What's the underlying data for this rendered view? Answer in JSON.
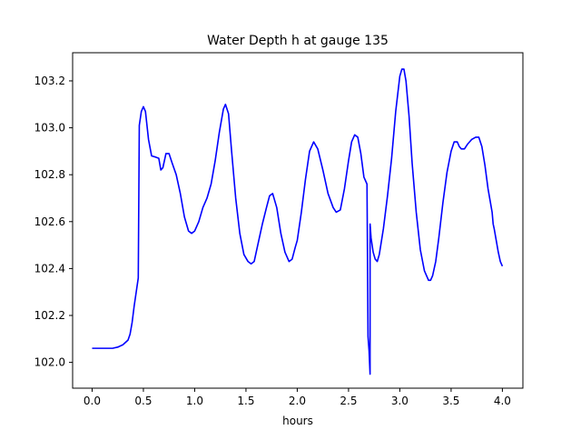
{
  "chart_data": {
    "type": "line",
    "title": "Water Depth h at gauge 135",
    "xlabel": "hours",
    "ylabel": "",
    "xlim": [
      -0.19,
      4.2
    ],
    "ylim": [
      101.89,
      103.32
    ],
    "xticks": [
      0.0,
      0.5,
      1.0,
      1.5,
      2.0,
      2.5,
      3.0,
      3.5,
      4.0
    ],
    "xtick_labels": [
      "0.0",
      "0.5",
      "1.0",
      "1.5",
      "2.0",
      "2.5",
      "3.0",
      "3.5",
      "4.0"
    ],
    "yticks": [
      102.0,
      102.2,
      102.4,
      102.6,
      102.8,
      103.0,
      103.2
    ],
    "ytick_labels": [
      "102.0",
      "102.2",
      "102.4",
      "102.6",
      "102.8",
      "103.0",
      "103.2"
    ],
    "grid": false,
    "series": [
      {
        "color": "#0000ff",
        "x": [
          0.0,
          0.1,
          0.2,
          0.25,
          0.3,
          0.35,
          0.37,
          0.39,
          0.41,
          0.43,
          0.45,
          0.46,
          0.46,
          0.48,
          0.5,
          0.52,
          0.55,
          0.58,
          0.62,
          0.65,
          0.67,
          0.69,
          0.72,
          0.75,
          0.78,
          0.82,
          0.86,
          0.9,
          0.94,
          0.97,
          1.0,
          1.04,
          1.08,
          1.12,
          1.16,
          1.2,
          1.24,
          1.28,
          1.3,
          1.33,
          1.36,
          1.4,
          1.44,
          1.48,
          1.52,
          1.55,
          1.58,
          1.6,
          1.63,
          1.66,
          1.7,
          1.73,
          1.76,
          1.8,
          1.84,
          1.88,
          1.92,
          1.95,
          1.98,
          2.0,
          2.04,
          2.08,
          2.12,
          2.16,
          2.2,
          2.25,
          2.3,
          2.35,
          2.38,
          2.42,
          2.46,
          2.5,
          2.53,
          2.56,
          2.59,
          2.62,
          2.65,
          2.68,
          2.69,
          2.69,
          2.7,
          2.71,
          2.71,
          2.72,
          2.74,
          2.76,
          2.78,
          2.8,
          2.84,
          2.88,
          2.92,
          2.96,
          3.0,
          3.02,
          3.04,
          3.06,
          3.09,
          3.12,
          3.16,
          3.2,
          3.24,
          3.28,
          3.3,
          3.32,
          3.35,
          3.38,
          3.42,
          3.46,
          3.5,
          3.53,
          3.56,
          3.58,
          3.6,
          3.63,
          3.66,
          3.7,
          3.74,
          3.77,
          3.8,
          3.83,
          3.86,
          3.88,
          3.9,
          3.91,
          3.92,
          3.94,
          3.96,
          3.98,
          4.0
        ],
        "y": [
          102.06,
          102.06,
          102.06,
          102.065,
          102.075,
          102.095,
          102.12,
          102.17,
          102.24,
          102.3,
          102.36,
          103.01,
          103.01,
          103.07,
          103.09,
          103.07,
          102.95,
          102.88,
          102.875,
          102.87,
          102.82,
          102.83,
          102.89,
          102.89,
          102.85,
          102.8,
          102.72,
          102.62,
          102.56,
          102.55,
          102.56,
          102.6,
          102.66,
          102.7,
          102.76,
          102.86,
          102.98,
          103.08,
          103.1,
          103.06,
          102.9,
          102.7,
          102.55,
          102.46,
          102.43,
          102.42,
          102.43,
          102.47,
          102.53,
          102.59,
          102.66,
          102.71,
          102.72,
          102.66,
          102.55,
          102.47,
          102.43,
          102.44,
          102.49,
          102.52,
          102.64,
          102.78,
          102.9,
          102.94,
          102.91,
          102.82,
          102.72,
          102.66,
          102.64,
          102.65,
          102.74,
          102.86,
          102.94,
          102.97,
          102.96,
          102.89,
          102.79,
          102.76,
          102.11,
          102.11,
          102.05,
          101.95,
          102.59,
          102.53,
          102.47,
          102.44,
          102.43,
          102.46,
          102.57,
          102.71,
          102.87,
          103.07,
          103.22,
          103.25,
          103.25,
          103.2,
          103.05,
          102.85,
          102.64,
          102.48,
          102.39,
          102.35,
          102.35,
          102.37,
          102.43,
          102.53,
          102.68,
          102.81,
          102.9,
          102.94,
          102.94,
          102.92,
          102.91,
          102.91,
          102.93,
          102.95,
          102.96,
          102.96,
          102.92,
          102.84,
          102.74,
          102.69,
          102.64,
          102.59,
          102.57,
          102.52,
          102.47,
          102.43,
          102.41
        ]
      }
    ]
  }
}
